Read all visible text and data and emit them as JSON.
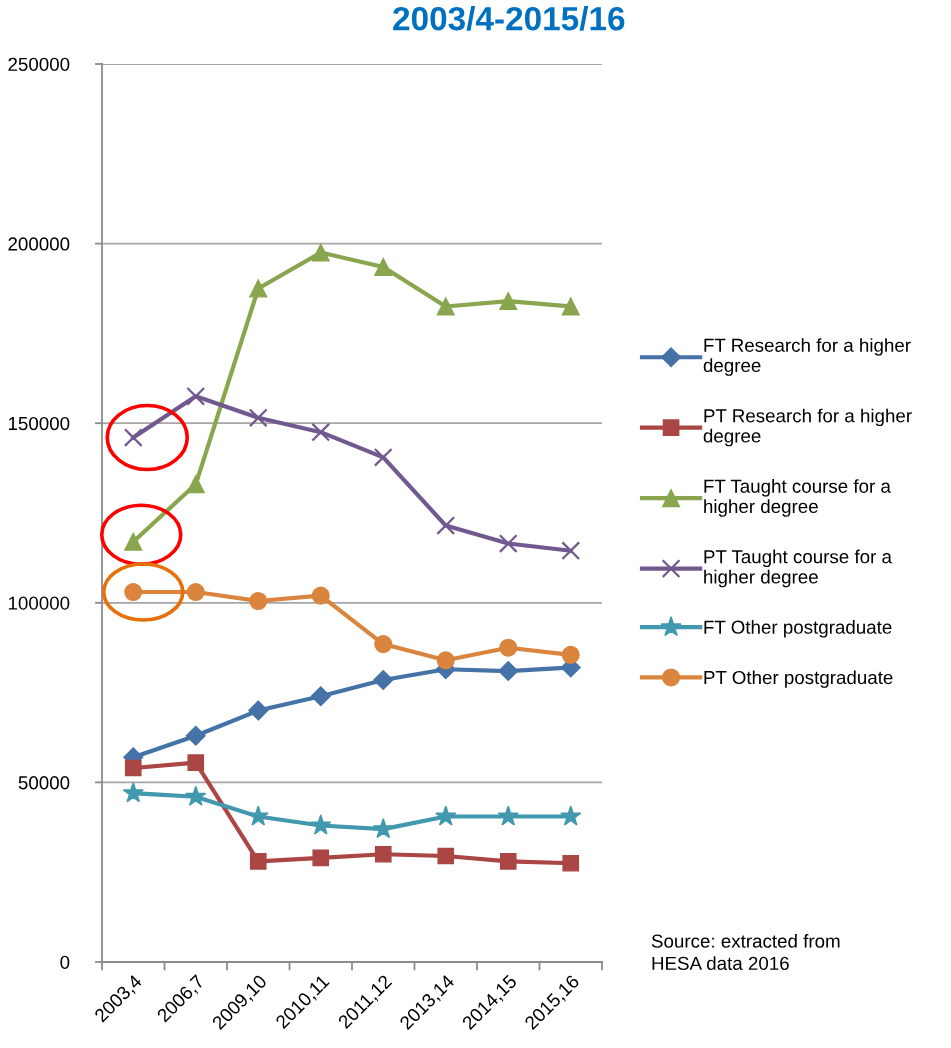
{
  "chart_data": {
    "type": "line",
    "title": "2003/4-2015/16",
    "categories": [
      "2003,4",
      "2006,7",
      "2009,10",
      "2010,11",
      "2011,12",
      "2013,14",
      "2014,15",
      "2015,16"
    ],
    "series": [
      {
        "name": "FT Research for a higher degree",
        "color": "#4572a7",
        "marker": "diamond",
        "values": [
          57000,
          63000,
          70000,
          74000,
          78500,
          81500,
          81000,
          82000
        ]
      },
      {
        "name": "PT Research for a higher degree",
        "color": "#aa4643",
        "marker": "square",
        "values": [
          54000,
          55500,
          28000,
          29000,
          30000,
          29500,
          28000,
          27500
        ]
      },
      {
        "name": "FT Taught course for a higher degree",
        "color": "#89a54e",
        "marker": "triangle",
        "values": [
          117000,
          133000,
          187500,
          197500,
          193500,
          182500,
          184000,
          182500
        ]
      },
      {
        "name": "PT Taught course for a higher degree",
        "color": "#71588f",
        "marker": "cross",
        "values": [
          146000,
          157500,
          151500,
          147500,
          140500,
          121500,
          116500,
          114500
        ]
      },
      {
        "name": "FT Other postgraduate",
        "color": "#4198af",
        "marker": "star",
        "values": [
          47000,
          46000,
          40500,
          38000,
          37000,
          40500,
          40500,
          40500
        ]
      },
      {
        "name": "PT Other postgraduate",
        "color": "#db843d",
        "marker": "circle",
        "values": [
          103000,
          103000,
          100500,
          102000,
          88500,
          84000,
          87500,
          85500
        ]
      }
    ],
    "ylim": [
      0,
      250000
    ],
    "yticks": [
      0,
      50000,
      100000,
      150000,
      200000,
      250000
    ],
    "grid": "y",
    "legend": "right",
    "line_style": "solid",
    "annotations": [
      "Source: extracted from HESA data 2016"
    ]
  }
}
